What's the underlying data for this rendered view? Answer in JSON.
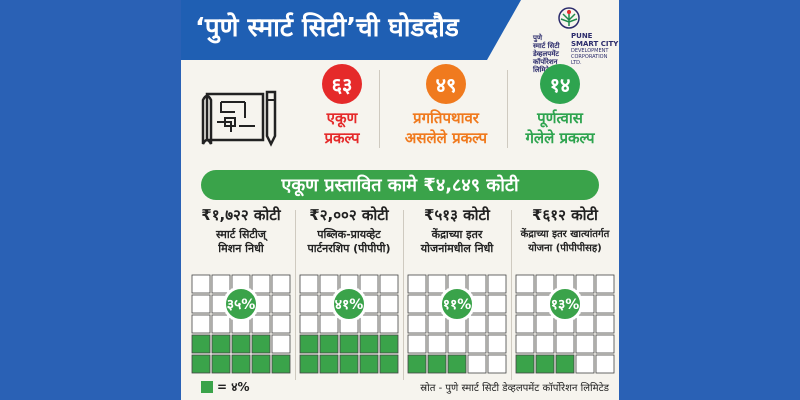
{
  "title": "‘पुणे स्मार्ट सिटी’ची घोडदौड",
  "logo": {
    "marathi_lines": [
      "पुणे",
      "स्मार्ट सिटी",
      "डेव्हलपमेंट",
      "कॉर्पोरेशन लिमिटेड"
    ],
    "english_name": "PUNE SMART CITY",
    "english_sub": "DEVELOPMENT CORPORATION LTD."
  },
  "stats": [
    {
      "value": "६३",
      "line1": "एकूण",
      "line2": "प्रकल्प",
      "color": "#e52a2a"
    },
    {
      "value": "४९",
      "line1": "प्रगतिपथावर",
      "line2": "असलेले प्रकल्प",
      "color": "#f07a1e"
    },
    {
      "value": "१४",
      "line1": "पूर्णत्वास",
      "line2": "गेलेले प्रकल्प",
      "color": "#2ea44f"
    }
  ],
  "total_bar": "एकूण प्रस्तावित कामे  ₹४,८४९ कोटी",
  "panels": [
    {
      "amount": "₹१,७२२ कोटी",
      "desc1": "स्मार्ट सिटीज्",
      "desc2": "मिशन निधी",
      "percent": "३५%",
      "percent_value": 35
    },
    {
      "amount": "₹२,००२ कोटी",
      "desc1": "पब्लिक-प्रायव्हेट",
      "desc2": "पार्टनरशिप (पीपीपी)",
      "percent": "४१%",
      "percent_value": 41
    },
    {
      "amount": "₹५१३ कोटी",
      "desc1": "केंद्राच्या इतर",
      "desc2": "योजनांमधील निधी",
      "percent": "११%",
      "percent_value": 11
    },
    {
      "amount": "₹६१२ कोटी",
      "desc1": "केंद्राच्या इतर खात्यांतर्गत",
      "desc2": "योजना (पीपीपीसह)",
      "percent": "१३%",
      "percent_value": 13
    }
  ],
  "legend": "= ४%",
  "source": "स्रोत - पुणे स्मार्ट सिटी डेव्हलपमेंट कॉर्पोरेशन लिमिटेड",
  "colors": {
    "background": "#2a61b5",
    "title_band": "#1f5fb3",
    "green": "#3aa34a",
    "card": "#f6f4ee"
  }
}
